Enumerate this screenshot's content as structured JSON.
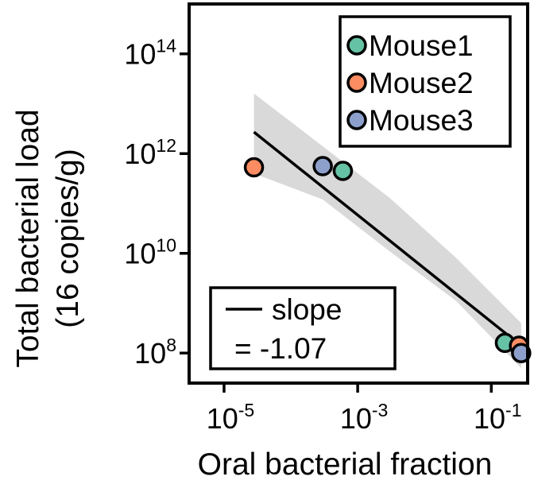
{
  "chart_data": {
    "type": "scatter",
    "title": "",
    "xlabel": "Oral bacterial fraction",
    "ylabel_lines": [
      "Total bacterial load",
      "(16 copies/g)"
    ],
    "xscale": "log",
    "yscale": "log",
    "xlim": [
      3e-06,
      0.35
    ],
    "ylim": [
      25000000.0,
      1000000000000000.0
    ],
    "xticks": [
      {
        "value": 1e-05,
        "base": "10",
        "exp": "-5"
      },
      {
        "value": 0.001,
        "base": "10",
        "exp": "-3"
      },
      {
        "value": 0.1,
        "base": "10",
        "exp": "-1"
      }
    ],
    "yticks": [
      {
        "value": 100000000.0,
        "base": "10",
        "exp": "8"
      },
      {
        "value": 10000000000.0,
        "base": "10",
        "exp": "10"
      },
      {
        "value": 1000000000000.0,
        "base": "10",
        "exp": "12"
      },
      {
        "value": 100000000000000.0,
        "base": "10",
        "exp": "14"
      }
    ],
    "grid": false,
    "legend_position": "top-right",
    "series": [
      {
        "name": "Mouse1",
        "color": "#66c2a5",
        "points": [
          {
            "x": 0.0006,
            "y": 450000000000.0
          },
          {
            "x": 0.16,
            "y": 160000000.0
          }
        ]
      },
      {
        "name": "Mouse2",
        "color": "#fc8d62",
        "points": [
          {
            "x": 2.8e-05,
            "y": 530000000000.0
          },
          {
            "x": 0.26,
            "y": 140000000.0
          }
        ]
      },
      {
        "name": "Mouse3",
        "color": "#8da0cb",
        "points": [
          {
            "x": 0.0003,
            "y": 560000000000.0
          },
          {
            "x": 0.28,
            "y": 100000000.0
          }
        ]
      }
    ],
    "fit": {
      "slope_label": "slope",
      "slope_value_label": "= -1.07",
      "slope": -1.07,
      "x_range": [
        2.8e-05,
        0.28
      ],
      "y_at_x_range": [
        2700000000000.0,
        140000000.0
      ],
      "band_upper": [
        {
          "x": 2.8e-05,
          "y": 16000000000000.0
        },
        {
          "x": 0.0003,
          "y": 1400000000000.0
        },
        {
          "x": 0.003,
          "y": 130000000000.0
        },
        {
          "x": 0.03,
          "y": 8000000000.0
        },
        {
          "x": 0.28,
          "y": 400000000.0
        }
      ],
      "band_lower": [
        {
          "x": 2.8e-05,
          "y": 400000000000.0
        },
        {
          "x": 0.0003,
          "y": 120000000000.0
        },
        {
          "x": 0.003,
          "y": 11000000000.0
        },
        {
          "x": 0.03,
          "y": 1100000000.0
        },
        {
          "x": 0.28,
          "y": 50000000.0
        }
      ],
      "line_color": "#000000",
      "band_color": "#d9d9d9"
    }
  }
}
